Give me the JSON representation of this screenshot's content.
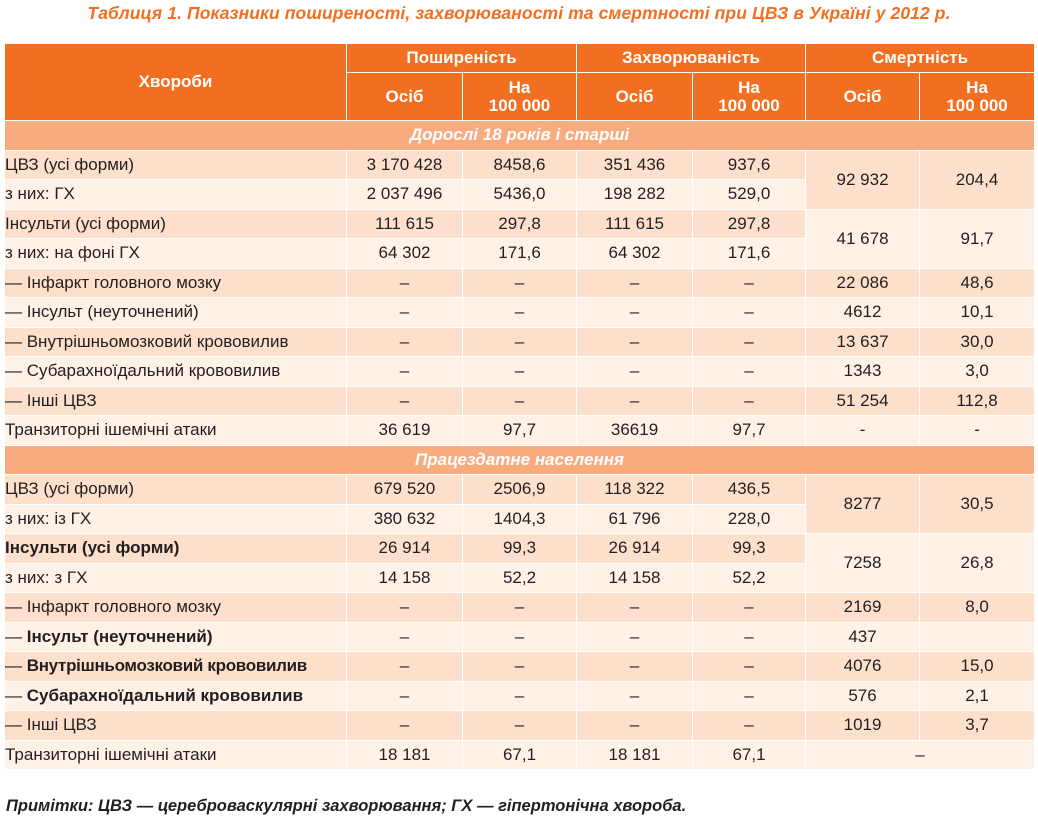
{
  "caption": "Таблиця 1. Показники поширеності, захворюваності та смертності при ЦВЗ в Україні у 2012 р.",
  "header": {
    "diseases": "Хвороби",
    "prevalence": "Поширеність",
    "incidence": "Захворюваність",
    "mortality": "Смертність",
    "persons": "Осіб",
    "per100k": "На 100 000"
  },
  "sections": [
    {
      "title": "Дорослі 18 років і старші",
      "rows": [
        {
          "name": "ЦВЗ (усі форми)",
          "p1": "3 170 428",
          "p2": "8458,6",
          "i1": "351 436",
          "i2": "937,6",
          "m1": "92 932",
          "m2": "204,4"
        },
        {
          "name": "з них: ГХ",
          "p1": "2 037 496",
          "p2": "5436,0",
          "i1": "198 282",
          "i2": "529,0"
        },
        {
          "name": "Інсульти (усі форми)",
          "p1": "111 615",
          "p2": "297,8",
          "i1": "111 615",
          "i2": "297,8",
          "m1": "41 678",
          "m2": "91,7"
        },
        {
          "name": "з них: на фоні ГХ",
          "p1": "64 302",
          "p2": "171,6",
          "i1": "64 302",
          "i2": "171,6"
        },
        {
          "name": "— Інфаркт головного мозку",
          "p1": "–",
          "p2": "–",
          "i1": "–",
          "i2": "–",
          "m1": "22 086",
          "m2": "48,6"
        },
        {
          "name": "— Інсульт (неуточнений)",
          "p1": "–",
          "p2": "–",
          "i1": "–",
          "i2": "–",
          "m1": "4612",
          "m2": "10,1"
        },
        {
          "name": "— Внутрішньомозковий крововилив",
          "p1": "–",
          "p2": "–",
          "i1": "–",
          "i2": "–",
          "m1": "13 637",
          "m2": "30,0"
        },
        {
          "name": "— Субарахноїдальний крововилив",
          "p1": "–",
          "p2": "–",
          "i1": "–",
          "i2": "–",
          "m1": "1343",
          "m2": "3,0"
        },
        {
          "name": "— Інші ЦВЗ",
          "p1": "–",
          "p2": "–",
          "i1": "–",
          "i2": "–",
          "m1": "51 254",
          "m2": "112,8"
        },
        {
          "name": "Транзиторні ішемічні атаки",
          "p1": "36 619",
          "p2": "97,7",
          "i1": "36619",
          "i2": "97,7",
          "m1": "-",
          "m2": "-"
        }
      ]
    },
    {
      "title": "Працездатне населення",
      "rows": [
        {
          "name": "ЦВЗ (усі форми)",
          "p1": "679 520",
          "p2": "2506,9",
          "i1": "118 322",
          "i2": "436,5",
          "m1": "8277",
          "m2": "30,5"
        },
        {
          "name": "з них: із ГХ",
          "p1": "380 632",
          "p2": "1404,3",
          "i1": "61 796",
          "i2": "228,0"
        },
        {
          "name": "Інсульти (усі форми)",
          "p1": "26 914",
          "p2": "99,3",
          "i1": "26 914",
          "i2": "99,3",
          "m1": "7258",
          "m2": "26,8"
        },
        {
          "name": "з них: з ГХ",
          "p1": "14 158",
          "p2": "52,2",
          "i1": "14 158",
          "i2": "52,2"
        },
        {
          "name": "— Інфаркт головного мозку",
          "p1": "–",
          "p2": "–",
          "i1": "–",
          "i2": "–",
          "m1": "2169",
          "m2": "8,0"
        },
        {
          "name_prefix": "— ",
          "name": "Інсульт (неуточнений)",
          "p1": "–",
          "p2": "–",
          "i1": "–",
          "i2": "–",
          "m1": "437",
          "m2": ""
        },
        {
          "name_prefix": "— ",
          "name": "Внутрішньомозковий крововилив",
          "p1": "–",
          "p2": "–",
          "i1": "–",
          "i2": "–",
          "m1": "4076",
          "m2": "15,0"
        },
        {
          "name_prefix": "— ",
          "name": "Субарахноїдальний крововилив",
          "p1": "–",
          "p2": "–",
          "i1": "–",
          "i2": "–",
          "m1": "576",
          "m2": "2,1"
        },
        {
          "name": "— Інші ЦВЗ",
          "p1": "–",
          "p2": "–",
          "i1": "–",
          "i2": "–",
          "m1": "1019",
          "m2": "3,7"
        },
        {
          "name": "Транзиторні ішемічні атаки",
          "p1": "18 181",
          "p2": "67,1",
          "i1": "18 181",
          "i2": "67,1",
          "m_merged": "–"
        }
      ]
    }
  ],
  "note": "Примітки: ЦВЗ — цереброваскулярні захворювання; ГХ — гіпертонічна хвороба.",
  "colors": {
    "accent": "#f26f21",
    "section": "#f9ab80",
    "row_dark": "#fde0cc",
    "row_light": "#fff1e6"
  }
}
